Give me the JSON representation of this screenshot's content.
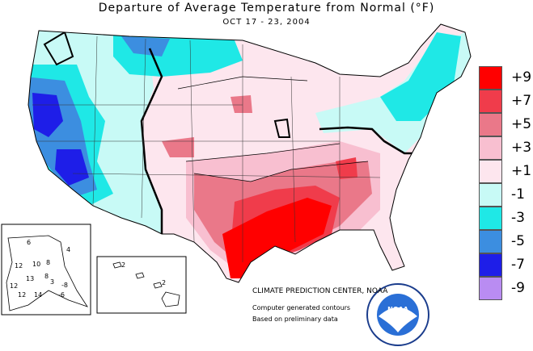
{
  "title": "Departure of Average Temperature from Normal (°F)",
  "subtitle": "OCT 17 - 23, 2004",
  "legend": [
    {
      "label": "+9",
      "color": "#ff0000"
    },
    {
      "label": "+7",
      "color": "#f03c4b"
    },
    {
      "label": "+5",
      "color": "#ea7889"
    },
    {
      "label": "+3",
      "color": "#f8bfd0"
    },
    {
      "label": "+1",
      "color": "#fde6ee"
    },
    {
      "label": "-1",
      "color": "#c8faf6"
    },
    {
      "label": "-3",
      "color": "#1fe8e6"
    },
    {
      "label": "-5",
      "color": "#3c8ee0"
    },
    {
      "label": "-7",
      "color": "#1e1ee8"
    },
    {
      "label": "-9",
      "color": "#b98cf2"
    }
  ],
  "credits": {
    "line1": "CLIMATE PREDICTION CENTER, NOAA",
    "line2": "Computer generated contours",
    "line3": "Based on preliminary data"
  },
  "alaska_labels": [
    "4",
    "6",
    "8",
    "12",
    "10",
    "8",
    "12",
    "13",
    "3",
    "-8",
    "12",
    "14",
    "-6"
  ],
  "hawaii_labels": [
    "2",
    "2"
  ],
  "logo_text": "NOAA"
}
